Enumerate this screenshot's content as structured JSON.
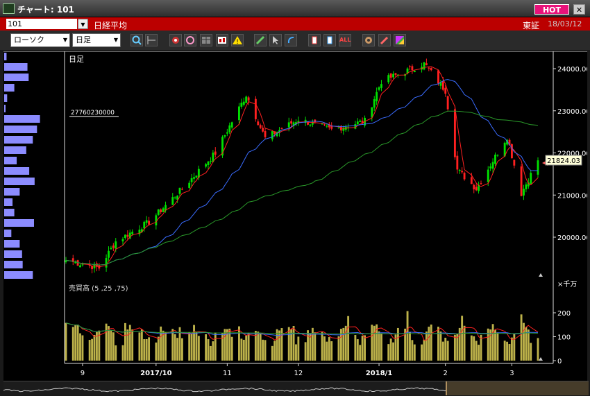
{
  "window": {
    "title": "チャート: 101",
    "hot_label": "HOT",
    "close_label": "✕"
  },
  "symbol_bar": {
    "code": "101",
    "name": "日経平均",
    "exchange": "東証",
    "date": "18/03/12"
  },
  "toolbar": {
    "chart_type": "ローソク",
    "period": "日足",
    "icons": [
      "magnifier-icon",
      "range-icon",
      "lines-icon",
      "query-icon",
      "table-icon",
      "compare-icon",
      "alert-icon",
      "pen-icon",
      "cursor-icon",
      "undo-icon",
      "candle-add-icon",
      "candle-remove-icon",
      "all-icon",
      "settings-icon",
      "wrench-icon",
      "palette-icon"
    ],
    "all_label": "ALL"
  },
  "price_panel": {
    "period_label": "日足",
    "last_price": "21824.03",
    "volume_profile_label": "27760230000",
    "y_ticks": [
      "24000.00",
      "23000.00",
      "22000.00",
      "21000.00",
      "20000.00"
    ],
    "colors": {
      "ma5": "#ff2020",
      "ma25": "#3a6cff",
      "ma75": "#2a9a2a",
      "candle_up": "#00e000",
      "candle_down": "#ff2020"
    }
  },
  "volume_panel": {
    "title": "売買高 (5 ,25 ,75)",
    "unit": "×千万",
    "y_ticks": [
      "200",
      "100",
      "0"
    ]
  },
  "x_axis": [
    "9",
    "2017/10",
    "11",
    "12",
    "2018/1",
    "2",
    "3"
  ],
  "chart_data": {
    "type": "candlestick",
    "period": "daily",
    "date_range": [
      "2017/8/25",
      "2018/3/12"
    ],
    "last_close": 21824.03,
    "y_ticks": [
      20000,
      21000,
      22000,
      23000,
      24000
    ],
    "volume_y_ticks": [
      0,
      100,
      200
    ],
    "volume_unit": "×千万",
    "moving_average_periods": [
      5,
      25,
      75
    ],
    "price_anchors": [
      {
        "date": "2017/8/25",
        "price": 19450
      },
      {
        "date": "2017/9/8",
        "price": 19270
      },
      {
        "date": "2017/9/15",
        "price": 19900
      },
      {
        "date": "2017/9/29",
        "price": 20360
      },
      {
        "date": "2017/10/13",
        "price": 21150
      },
      {
        "date": "2017/10/27",
        "price": 22000
      },
      {
        "date": "2017/11/9",
        "price": 23380
      },
      {
        "date": "2017/11/17",
        "price": 22350
      },
      {
        "date": "2017/12/1",
        "price": 22800
      },
      {
        "date": "2017/12/15",
        "price": 22550
      },
      {
        "date": "2017/12/29",
        "price": 22760
      },
      {
        "date": "2018/1/5",
        "price": 23700
      },
      {
        "date": "2018/1/23",
        "price": 24120
      },
      {
        "date": "2018/2/1",
        "price": 23480
      },
      {
        "date": "2018/2/6",
        "price": 21600
      },
      {
        "date": "2018/2/14",
        "price": 21150
      },
      {
        "date": "2018/2/27",
        "price": 22390
      },
      {
        "date": "2018/3/5",
        "price": 21040
      },
      {
        "date": "2018/3/12",
        "price": 21824
      }
    ],
    "volume_profile": [
      0.04,
      0.39,
      0.41,
      0.17,
      0.05,
      0.02,
      0.6,
      0.55,
      0.48,
      0.37,
      0.21,
      0.42,
      0.51,
      0.26,
      0.14,
      0.17,
      0.5,
      0.12,
      0.26,
      0.3,
      0.31,
      0.48
    ]
  }
}
